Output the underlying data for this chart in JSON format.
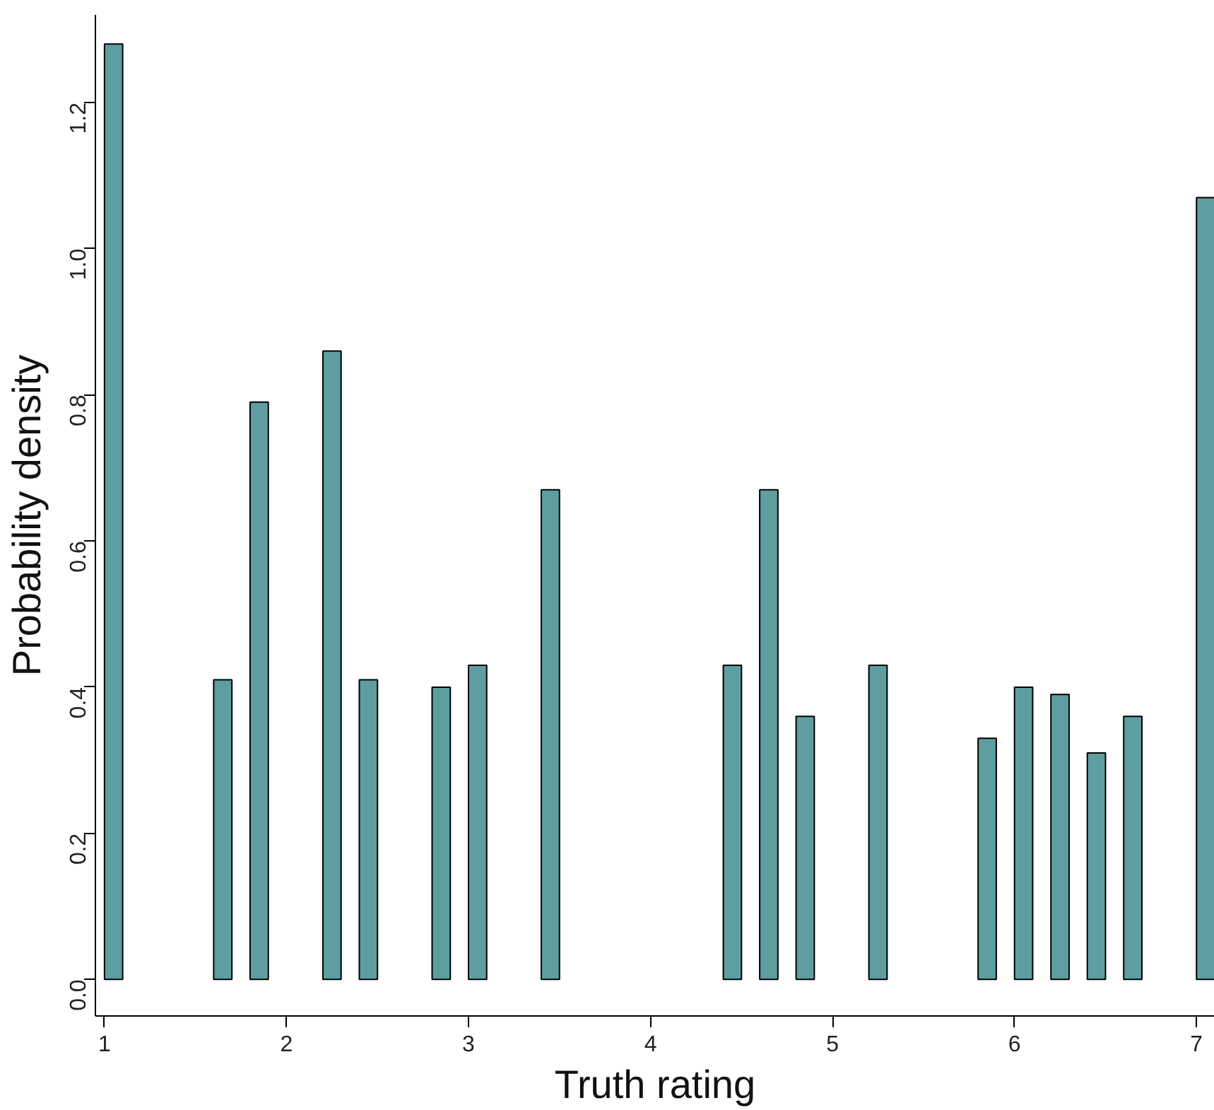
{
  "chart_data": {
    "type": "histogram",
    "xlabel": "Truth rating",
    "ylabel": "Probability density",
    "color": "#5f9ea0",
    "bins": [
      1.0,
      1.1,
      1.2,
      1.3,
      1.4,
      1.5,
      1.6,
      1.7,
      1.8,
      1.9,
      2.0,
      2.1,
      2.2,
      2.3,
      2.4,
      2.5,
      2.6,
      2.7,
      2.8,
      2.9,
      3.0,
      3.1,
      3.2,
      3.3,
      3.4,
      3.5,
      3.6,
      3.7,
      3.8,
      3.9,
      4.0,
      4.1,
      4.2,
      4.3,
      4.4,
      4.5,
      4.6,
      4.7,
      4.8,
      4.9,
      5.0,
      5.1,
      5.2,
      5.3,
      5.4,
      5.5,
      5.6,
      5.7,
      5.8,
      5.9,
      6.0,
      6.1,
      6.2,
      6.3,
      6.4,
      6.5,
      6.6,
      6.7,
      6.8,
      6.9,
      7.0,
      7.1
    ],
    "values": [
      1.28,
      0,
      0,
      0,
      0,
      0,
      0.41,
      0,
      0.79,
      0,
      0,
      0,
      0.86,
      0,
      0.41,
      0,
      0,
      0,
      0.4,
      0,
      0.43,
      0,
      0,
      0,
      0.67,
      0,
      0,
      0,
      0,
      0,
      0,
      0,
      0,
      0,
      0.43,
      0,
      0.67,
      0,
      0.36,
      0,
      0,
      0,
      0.43,
      0,
      0,
      0,
      0,
      0,
      0.33,
      0,
      0.4,
      0,
      0.39,
      0,
      0.31,
      0,
      0.36,
      0,
      0,
      0,
      1.07
    ],
    "xlim": [
      0.95,
      7.1
    ],
    "ylim": [
      -0.05,
      1.32
    ],
    "xticks": [
      1,
      2,
      3,
      4,
      5,
      6,
      7
    ],
    "yticks": [
      {
        "value": 0,
        "label": "0.0"
      },
      {
        "value": 0.2,
        "label": "0.2"
      },
      {
        "value": 0.4,
        "label": "0.4"
      },
      {
        "value": 0.6,
        "label": "0.6"
      },
      {
        "value": 0.8,
        "label": "0.8"
      },
      {
        "value": 1.0,
        "label": "1.0"
      },
      {
        "value": 1.2,
        "label": "1.2"
      }
    ],
    "grid": false
  }
}
